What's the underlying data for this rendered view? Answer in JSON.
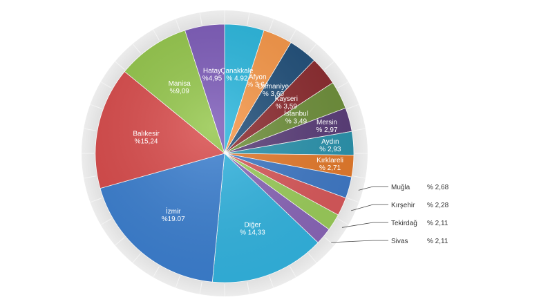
{
  "chart_data": {
    "type": "pie",
    "title": "",
    "start_angle_deg": 0,
    "direction": "clockwise",
    "slices": [
      {
        "name": "Çanakkale",
        "value_label": "% 4.92",
        "value": 4.92,
        "color": "#28b6dd",
        "label_color": "#ffffff"
      },
      {
        "name": "Afyon",
        "value_label": "% 3.64",
        "value": 3.64,
        "color": "#f79646",
        "label_color": "#ffffff"
      },
      {
        "name": "Osmaniye",
        "value_label": "% 3,60",
        "value": 3.6,
        "color": "#1f4e79",
        "label_color": "#ffffff"
      },
      {
        "name": "Kayseri",
        "value_label": "% 3,59",
        "value": 3.59,
        "color": "#8b2a2e",
        "label_color": "#ffffff"
      },
      {
        "name": "İstanbul",
        "value_label": "% 3,49",
        "value": 3.49,
        "color": "#6e8f3a",
        "label_color": "#ffffff"
      },
      {
        "name": "Mersin",
        "value_label": "% 2,97",
        "value": 2.97,
        "color": "#5a3d79",
        "label_color": "#ffffff"
      },
      {
        "name": "Aydın",
        "value_label": "% 2,93",
        "value": 2.93,
        "color": "#2a93ad",
        "label_color": "#ffffff"
      },
      {
        "name": "Kırklareli",
        "value_label": "% 2,71",
        "value": 2.71,
        "color": "#e57a2b",
        "label_color": "#ffffff"
      },
      {
        "name": "Muğla",
        "value_label": "% 2,68",
        "value": 2.68,
        "color": "#3f79c6",
        "label_color": "#333333",
        "callout": true
      },
      {
        "name": "Kırşehir",
        "value_label": "% 2,28",
        "value": 2.28,
        "color": "#d9585a",
        "label_color": "#333333",
        "callout": true
      },
      {
        "name": "Tekirdağ",
        "value_label": "% 2,11",
        "value": 2.11,
        "color": "#9bcd5a",
        "label_color": "#333333",
        "callout": true
      },
      {
        "name": "Sivas",
        "value_label": "% 2,11",
        "value": 2.11,
        "color": "#8a66b8",
        "label_color": "#333333",
        "callout": true
      },
      {
        "name": "Diğer",
        "value_label": "% 14,33",
        "value": 14.33,
        "color": "#32b4e0",
        "label_color": "#ffffff"
      },
      {
        "name": "İzmir",
        "value_label": "%19.07",
        "value": 19.07,
        "color": "#3b7fd0",
        "label_color": "#ffffff"
      },
      {
        "name": "Balıkesir",
        "value_label": "%15,24",
        "value": 15.24,
        "color": "#d94a4a",
        "label_color": "#ffffff"
      },
      {
        "name": "Manisa",
        "value_label": "%9,09",
        "value": 9.09,
        "color": "#93c649",
        "label_color": "#ffffff"
      },
      {
        "name": "Hatay",
        "value_label": "%4,95",
        "value": 4.95,
        "color": "#7b59b8",
        "label_color": "#ffffff"
      }
    ],
    "ring_color": "#e6e6e6",
    "legend": "none"
  }
}
